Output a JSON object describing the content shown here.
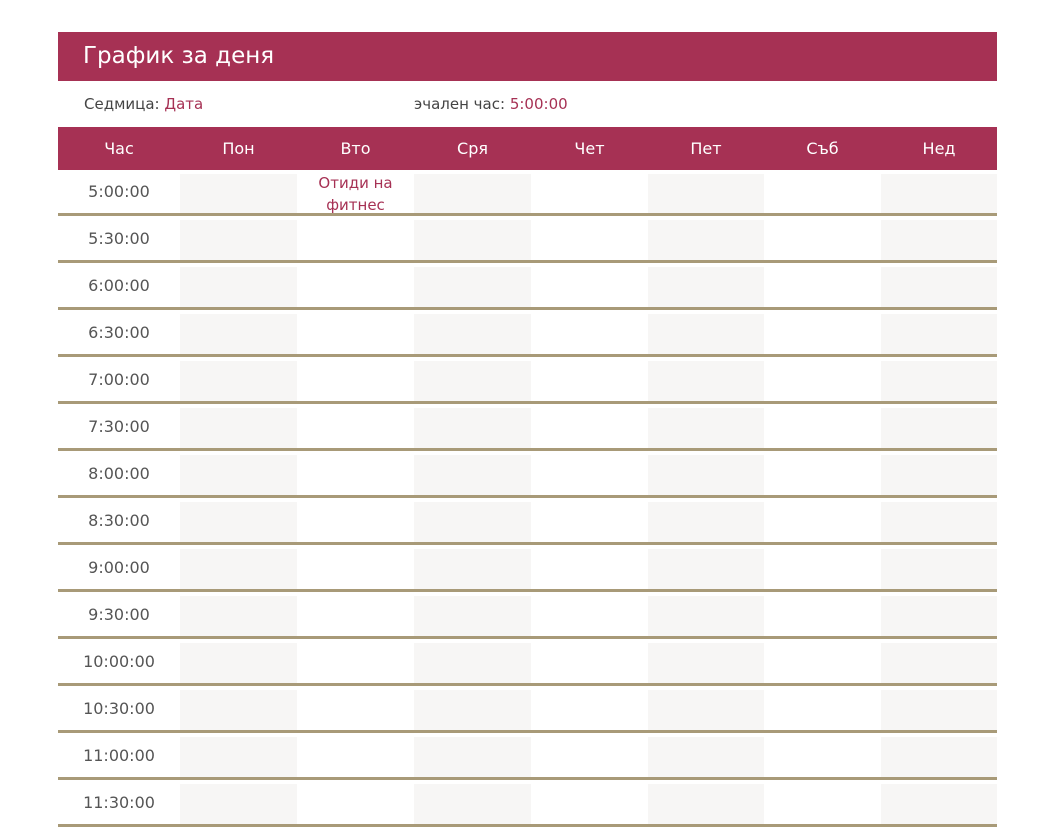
{
  "title": "График за деня",
  "week_label": "Седмица:",
  "week_value": "Дата",
  "start_label": "эчален час:",
  "start_value": "5:00:00",
  "colors": {
    "accent": "#a63154",
    "divider": "#a89a78",
    "shade": "#f7f6f5"
  },
  "headers": [
    "Час",
    "Пон",
    "Вто",
    "Сря",
    "Чет",
    "Пет",
    "Съб",
    "Нед"
  ],
  "rows": [
    {
      "time": "5:00:00",
      "cells": [
        "",
        "Отиди на фитнес",
        "",
        "",
        "",
        "",
        ""
      ]
    },
    {
      "time": "5:30:00",
      "cells": [
        "",
        "",
        "",
        "",
        "",
        "",
        ""
      ]
    },
    {
      "time": "6:00:00",
      "cells": [
        "",
        "",
        "",
        "",
        "",
        "",
        ""
      ]
    },
    {
      "time": "6:30:00",
      "cells": [
        "",
        "",
        "",
        "",
        "",
        "",
        ""
      ]
    },
    {
      "time": "7:00:00",
      "cells": [
        "",
        "",
        "",
        "",
        "",
        "",
        ""
      ]
    },
    {
      "time": "7:30:00",
      "cells": [
        "",
        "",
        "",
        "",
        "",
        "",
        ""
      ]
    },
    {
      "time": "8:00:00",
      "cells": [
        "",
        "",
        "",
        "",
        "",
        "",
        ""
      ]
    },
    {
      "time": "8:30:00",
      "cells": [
        "",
        "",
        "",
        "",
        "",
        "",
        ""
      ]
    },
    {
      "time": "9:00:00",
      "cells": [
        "",
        "",
        "",
        "",
        "",
        "",
        ""
      ]
    },
    {
      "time": "9:30:00",
      "cells": [
        "",
        "",
        "",
        "",
        "",
        "",
        ""
      ]
    },
    {
      "time": "10:00:00",
      "cells": [
        "",
        "",
        "",
        "",
        "",
        "",
        ""
      ]
    },
    {
      "time": "10:30:00",
      "cells": [
        "",
        "",
        "",
        "",
        "",
        "",
        ""
      ]
    },
    {
      "time": "11:00:00",
      "cells": [
        "",
        "",
        "",
        "",
        "",
        "",
        ""
      ]
    },
    {
      "time": "11:30:00",
      "cells": [
        "",
        "",
        "",
        "",
        "",
        "",
        ""
      ]
    }
  ]
}
